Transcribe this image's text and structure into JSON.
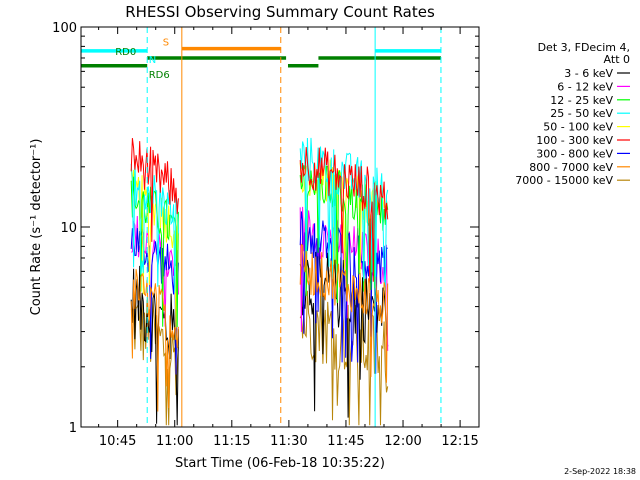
{
  "chart_data": {
    "type": "line",
    "title": "RHESSI Observing Summary Count Rates",
    "xlabel": "Start Time (06-Feb-18 10:35:22)",
    "ylabel": "Count Rate (s⁻¹ detector⁻¹)",
    "yscale": "log",
    "ylim": [
      1,
      100
    ],
    "xlim_minutes_after_start": [
      0,
      104.6
    ],
    "x_ticks": [
      "10:45",
      "11:00",
      "11:15",
      "11:30",
      "11:45",
      "12:00",
      "12:15"
    ],
    "y_ticks": [
      "1",
      "10",
      "100"
    ],
    "legend_header": [
      "Det 3, FDecim 4,",
      "Att 0"
    ],
    "legend_position": "right",
    "series": [
      {
        "name": "3 - 6 keV",
        "color": "#000000"
      },
      {
        "name": "6 - 12 keV",
        "color": "#ff00ff"
      },
      {
        "name": "12 - 25 keV",
        "color": "#00ff00"
      },
      {
        "name": "25 - 50 keV",
        "color": "#00ffff"
      },
      {
        "name": "50 - 100 keV",
        "color": "#ffff00"
      },
      {
        "name": "100 - 300 keV",
        "color": "#ff0000"
      },
      {
        "name": "300 - 800 keV",
        "color": "#0000ff"
      },
      {
        "name": "800 - 7000 keV",
        "color": "#ff8800"
      },
      {
        "name": "7000 - 15000 keV",
        "color": "#b8860b"
      }
    ],
    "flags": [
      {
        "label": "N",
        "color": "#00ffff",
        "segments_minutes": [
          [
            0,
            17.4
          ],
          [
            77.3,
            94.6
          ]
        ],
        "level": 76
      },
      {
        "label": "S",
        "color": "#ff8800",
        "segments_minutes": [
          [
            26.5,
            52.5
          ]
        ],
        "level": 78
      },
      {
        "label": "RD0",
        "color": "#008000",
        "segments_minutes": [
          [
            17.4,
            53.9
          ],
          [
            62.4,
            94.6
          ]
        ],
        "level": 70
      },
      {
        "label": "RD6",
        "color": "#008000",
        "segments_minutes": [
          [
            0,
            17.4
          ],
          [
            54.4,
            62.4
          ]
        ],
        "level": 64
      }
    ],
    "vertical_markers": [
      {
        "minute": 17.4,
        "color": "#00ffff",
        "style": "dashed"
      },
      {
        "minute": 26.5,
        "color": "#ff8800",
        "style": "solid"
      },
      {
        "minute": 52.5,
        "color": "#ff8800",
        "style": "dashed"
      },
      {
        "minute": 77.3,
        "color": "#00ffff",
        "style": "solid"
      },
      {
        "minute": 94.6,
        "color": "#00ffff",
        "style": "dashed"
      }
    ],
    "data_intervals_minutes": [
      [
        13.2,
        25.6
      ],
      [
        57.6,
        80.6
      ]
    ],
    "band_levels": {
      "interval_1": {
        "3 - 6 keV": 3.5,
        "6 - 12 keV": 7.5,
        "12 - 25 keV": 11.5,
        "25 - 50 keV": 14,
        "50 - 100 keV": 12,
        "100 - 300 keV": 18,
        "300 - 800 keV": 7,
        "800 - 7000 keV": 4,
        "7000 - 15000 keV": 2.7
      },
      "interval_2": {
        "3 - 6 keV": 4.5,
        "6 - 12 keV": 8,
        "12 - 25 keV": 14,
        "25 - 50 keV": 18,
        "50 - 100 keV": 15,
        "100 - 300 keV": 17,
        "300 - 800 keV": 7.5,
        "800 - 7000 keV": 5,
        "7000 - 15000 keV": 2.8
      }
    }
  },
  "timestamp": "2-Sep-2022 18:38"
}
